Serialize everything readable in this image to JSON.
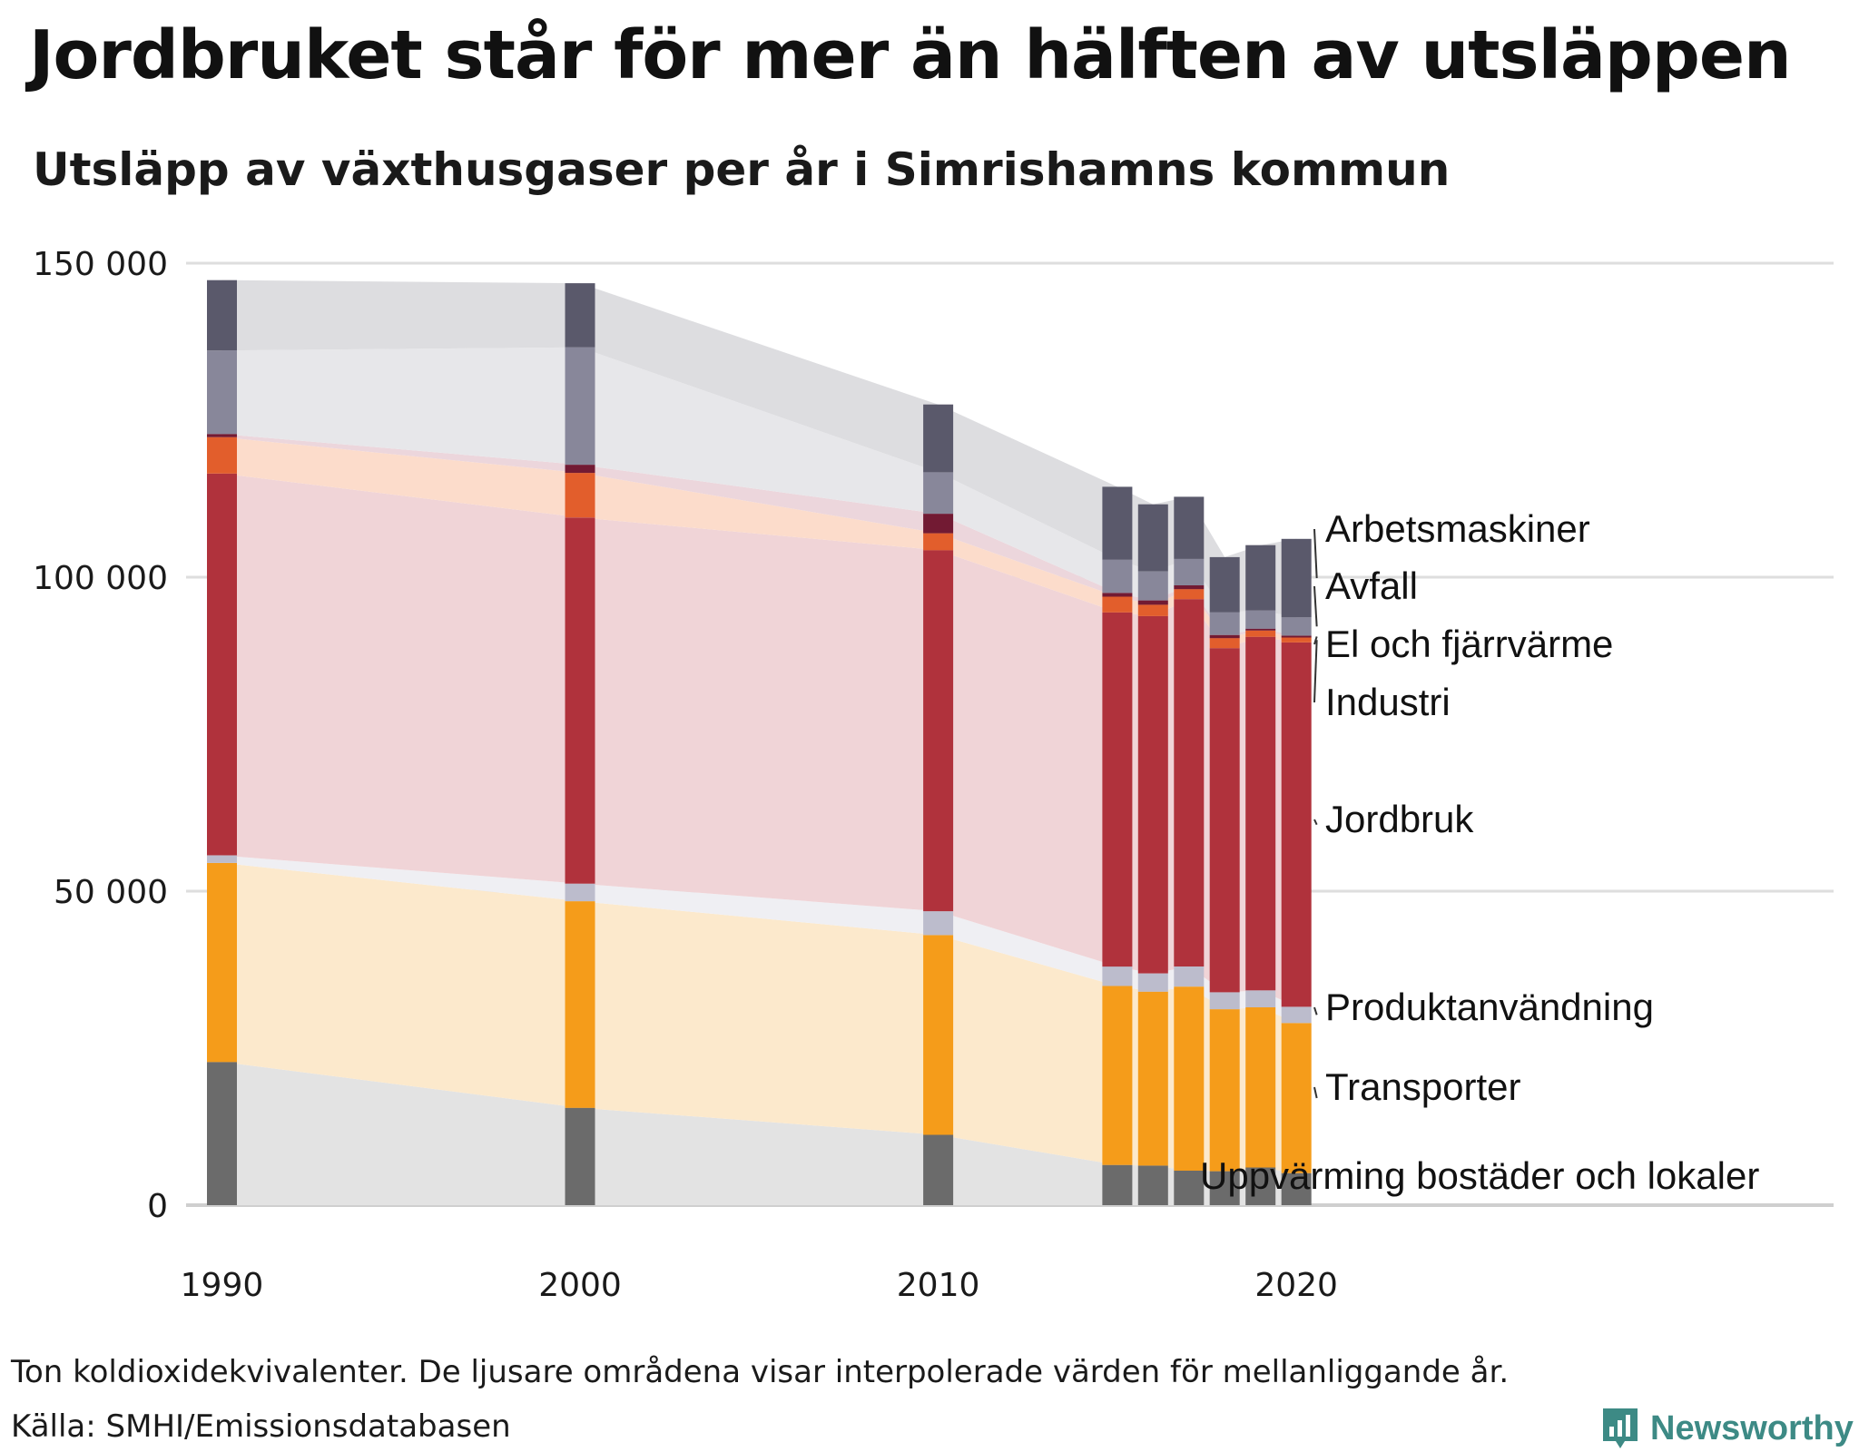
{
  "header": {
    "title": "Jordbruket står för mer än hälften av utsläppen",
    "subtitle": "Utsläpp av växthusgaser per år i Simrishamns kommun"
  },
  "footer": {
    "note": "Ton koldioxidekvivalenter. De ljusare områdena visar interpolerade värden för mellanliggande år.",
    "source": "Källa: SMHI/Emissionsdatabasen",
    "brand": "Newsworthy"
  },
  "chart_data": {
    "type": "bar",
    "stacked": true,
    "title": "Jordbruket står för mer än hälften av utsläppen",
    "subtitle": "Utsläpp av växthusgaser per år i Simrishamns kommun",
    "ylabel": "Ton koldioxidekvivalenter",
    "ylim": [
      0,
      150000
    ],
    "yticks": [
      0,
      50000,
      100000,
      150000
    ],
    "ytick_labels": [
      "0",
      "50 000",
      "100 000",
      "150 000"
    ],
    "xlim": [
      1989,
      2035
    ],
    "xticks": [
      1990,
      2000,
      2010,
      2020
    ],
    "xtick_labels": [
      "1990",
      "2000",
      "2010",
      "2020"
    ],
    "grid": true,
    "x": [
      1990,
      2000,
      2010,
      2015,
      2016,
      2017,
      2018,
      2019,
      2020
    ],
    "series": [
      {
        "name": "Uppvärming bostäder och lokaler",
        "color": "#6b6b6b",
        "fill": "#e3e3e3",
        "values": [
          22800,
          15500,
          11200,
          6400,
          6300,
          5500,
          5400,
          6000,
          5100
        ]
      },
      {
        "name": "Transporter",
        "color": "#f59c1a",
        "fill": "#fce9cc",
        "values": [
          31700,
          32900,
          31800,
          28500,
          27700,
          29300,
          25800,
          25500,
          23900
        ]
      },
      {
        "name": "Produktanvändning",
        "color": "#bcbccc",
        "fill": "#efeff3",
        "values": [
          1200,
          2800,
          3800,
          3100,
          2900,
          3200,
          2700,
          2700,
          2600
        ]
      },
      {
        "name": "Jordbruk",
        "color": "#b0323c",
        "fill": "#f0d4d7",
        "values": [
          60800,
          58300,
          57500,
          56400,
          56900,
          58500,
          54800,
          56300,
          58000
        ]
      },
      {
        "name": "Industri",
        "color": "#e25e2c",
        "fill": "#fcdccb",
        "values": [
          5800,
          7100,
          2700,
          2500,
          1800,
          1600,
          1600,
          1000,
          800
        ]
      },
      {
        "name": "El och fjärrvärme",
        "color": "#721a33",
        "fill": "#ecd6dc",
        "values": [
          500,
          1300,
          3100,
          600,
          700,
          600,
          500,
          300,
          300
        ]
      },
      {
        "name": "Avfall",
        "color": "#88879a",
        "fill": "#e7e7ea",
        "values": [
          13300,
          18700,
          6600,
          5300,
          4600,
          4200,
          3600,
          2900,
          2900
        ]
      },
      {
        "name": "Arbetsmaskiner",
        "color": "#5a596b",
        "fill": "#dddde0",
        "values": [
          11200,
          10200,
          10800,
          11600,
          10700,
          9900,
          8800,
          10400,
          12500
        ]
      }
    ],
    "labels": [
      {
        "text": "Arbetsmaskiner",
        "series": "Arbetsmaskiner"
      },
      {
        "text": "Avfall",
        "series": "Avfall"
      },
      {
        "text": "El och fjärrvärme",
        "series": "El och fjärrvärme"
      },
      {
        "text": "Industri",
        "series": "Industri"
      },
      {
        "text": "Jordbruk",
        "series": "Jordbruk"
      },
      {
        "text": "Produktanvändning",
        "series": "Produktanvändning"
      },
      {
        "text": "Transporter",
        "series": "Transporter"
      },
      {
        "text": "Uppvärming bostäder och lokaler",
        "series": "Uppvärming bostäder och lokaler"
      }
    ]
  }
}
